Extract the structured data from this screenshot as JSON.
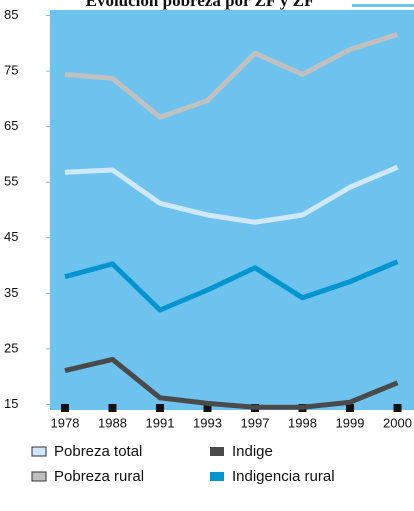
{
  "chart_data": {
    "type": "line",
    "title": "Evolución pobreza por ZF y ZF",
    "categories": [
      "1978",
      "1988",
      "1991",
      "1993",
      "1997",
      "1998",
      "1999",
      "2000"
    ],
    "series": [
      {
        "name": "Pobreza total",
        "color": "#cfe9fb",
        "values": [
          56.8,
          57.2,
          51.2,
          49.1,
          47.8,
          49.1,
          54.1,
          57.7
        ]
      },
      {
        "name": "Indige",
        "color": "#4a4a4a",
        "values": [
          21.1,
          23.1,
          16.2,
          15.2,
          14.5,
          14.5,
          15.4,
          18.9
        ]
      },
      {
        "name": "Pobreza rural",
        "color": "#c0c0c0",
        "values": [
          74.4,
          73.7,
          66.7,
          69.7,
          78.2,
          74.4,
          78.9,
          81.6
        ]
      },
      {
        "name": "Indigencia rural",
        "color": "#0095cf",
        "values": [
          38.0,
          40.3,
          32.0,
          35.6,
          39.6,
          34.2,
          37.1,
          40.7
        ]
      }
    ],
    "ylim": [
      14,
      86
    ],
    "yticks": [
      85,
      75,
      65,
      55,
      45,
      35,
      25,
      15
    ],
    "plot_color": "#6ec3ee"
  }
}
